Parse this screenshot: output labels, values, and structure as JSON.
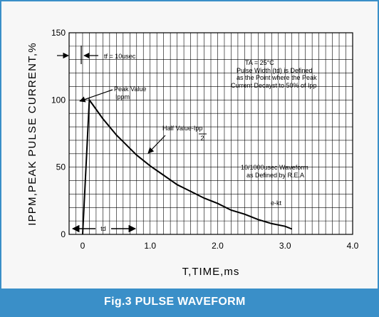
{
  "caption": "Fig.3 PULSE WAVEFORM",
  "chart_data": {
    "type": "line",
    "xlabel": "T,TIME,ms",
    "ylabel": "IPPM,PEAK PULSE CURRENT,%",
    "xlim": [
      -0.2,
      4.0
    ],
    "ylim": [
      0,
      150
    ],
    "x_ticks": [
      "0",
      "1.0",
      "2.0",
      "3.0",
      "4.0"
    ],
    "x_tick_values": [
      0,
      1,
      2,
      3,
      4
    ],
    "y_ticks": [
      "0",
      "50",
      "100",
      "150"
    ],
    "y_tick_values": [
      0,
      50,
      100,
      150
    ],
    "grid": true,
    "series": [
      {
        "x": [
          0,
          0.1,
          0.2,
          0.3,
          0.4,
          0.5,
          0.6,
          0.7,
          0.8,
          0.9,
          1.0,
          1.2,
          1.4,
          1.6,
          1.8,
          2.0,
          2.2,
          2.4,
          2.6,
          2.8,
          3.0,
          3.1
        ],
        "y": [
          0,
          100,
          93,
          86,
          80,
          74,
          69,
          64,
          59,
          55,
          51,
          44,
          37,
          32,
          27,
          23,
          18,
          15,
          11,
          8,
          6,
          4
        ]
      }
    ],
    "annotations": {
      "tf": "tf = 10usec",
      "ta": "TA = 25°C",
      "desc1": "Pulse Width (td) is Defined",
      "desc2": "as the Point where the Peak",
      "desc3": "Current Decayst to 50% of Ipp",
      "peak1": "Peak Value",
      "peak2": "Ippm",
      "half1": "Half Value-Ipp",
      "half2": "2",
      "wave1": "10/1000usec Waveform",
      "wave2": "as Defined by R.E.A",
      "ekt": "e-kt",
      "td": "td"
    }
  }
}
